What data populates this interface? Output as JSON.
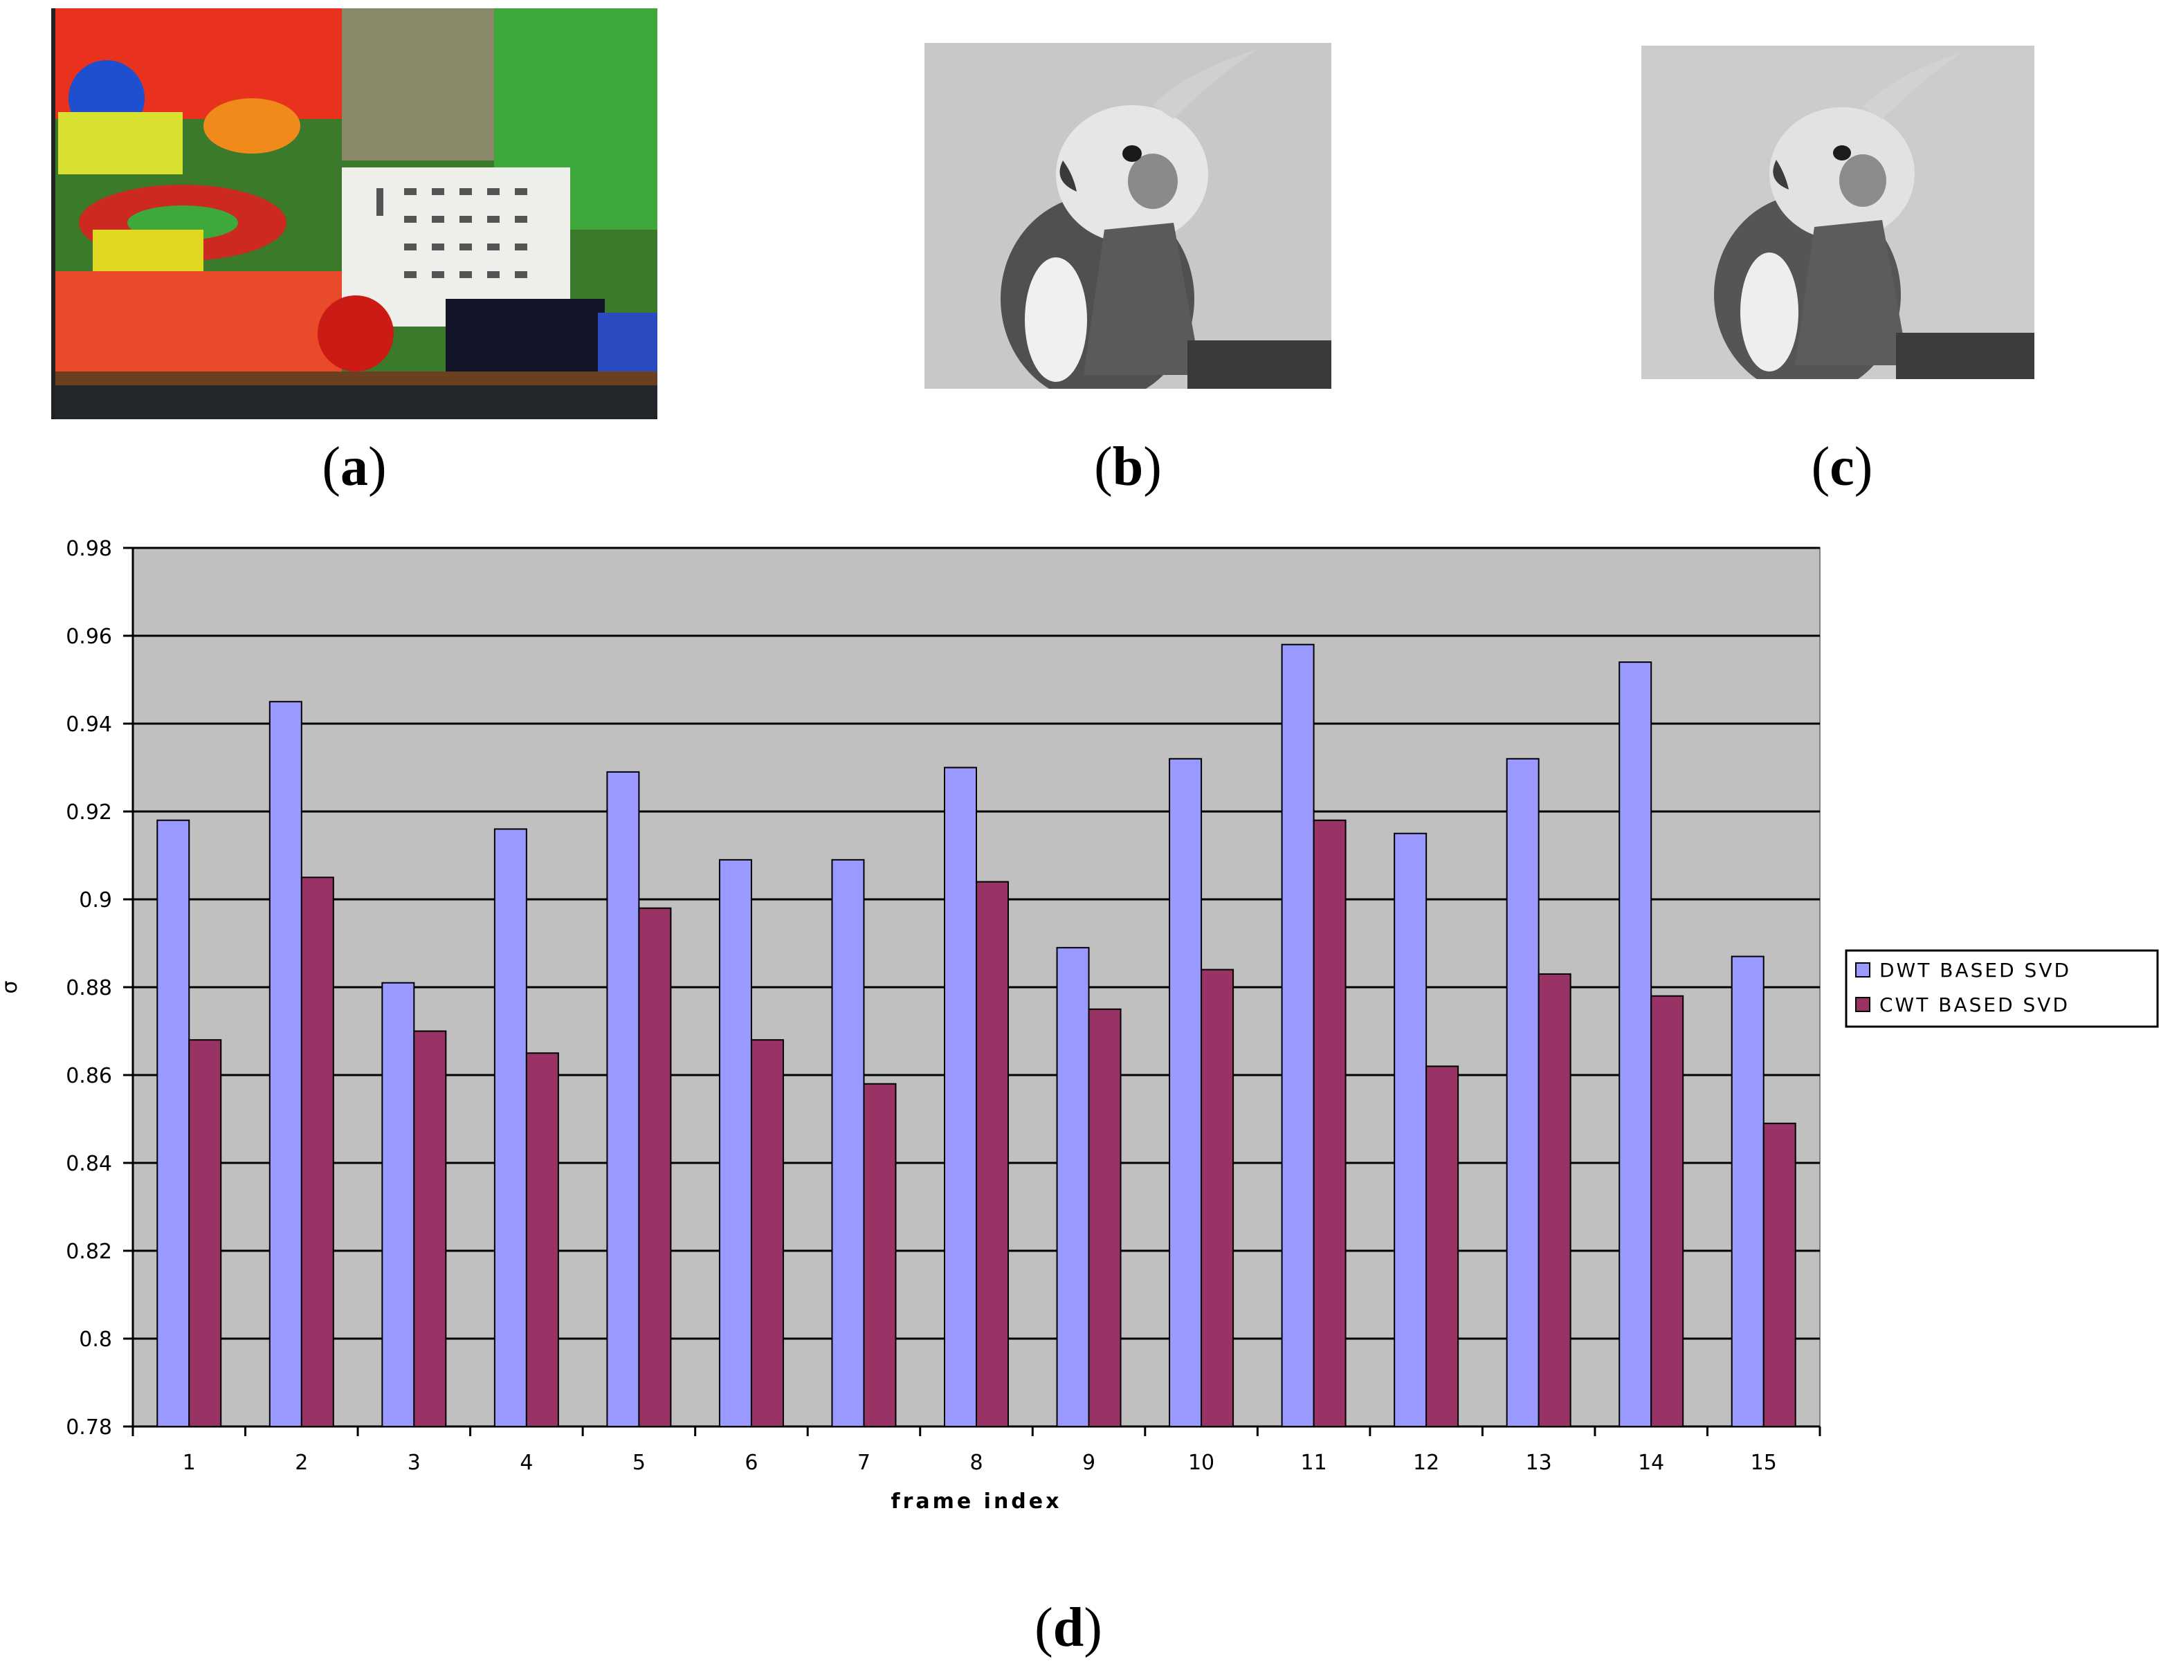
{
  "figure": {
    "captions": {
      "a": "a",
      "b": "b",
      "c": "c",
      "d": "d"
    },
    "photos": {
      "a_description_icon": "colorful-toy-scene-image",
      "b_description_icon": "grayscale-cockatiel-image",
      "c_description_icon": "grayscale-cockatiel-watermarked-image"
    }
  },
  "chart_data": {
    "type": "bar",
    "title": "",
    "xlabel": "frame index",
    "ylabel": "σ",
    "ylim": [
      0.78,
      0.98
    ],
    "yticks": [
      "0.78",
      "0.8",
      "0.82",
      "0.84",
      "0.86",
      "0.88",
      "0.9",
      "0.92",
      "0.94",
      "0.96",
      "0.98"
    ],
    "categories": [
      "1",
      "2",
      "3",
      "4",
      "5",
      "6",
      "7",
      "8",
      "9",
      "10",
      "11",
      "12",
      "13",
      "14",
      "15"
    ],
    "series": [
      {
        "name": "DWT BASED SVD",
        "color": "#9999ff",
        "values": [
          0.918,
          0.945,
          0.881,
          0.916,
          0.929,
          0.909,
          0.909,
          0.93,
          0.889,
          0.932,
          0.958,
          0.915,
          0.932,
          0.954,
          0.887
        ]
      },
      {
        "name": "CWT BASED SVD",
        "color": "#993366",
        "values": [
          0.868,
          0.905,
          0.87,
          0.865,
          0.898,
          0.868,
          0.858,
          0.904,
          0.875,
          0.884,
          0.918,
          0.862,
          0.883,
          0.878,
          0.849
        ]
      }
    ],
    "plot_background": "#c0c0c0",
    "grid": true,
    "legend_position": "right"
  }
}
